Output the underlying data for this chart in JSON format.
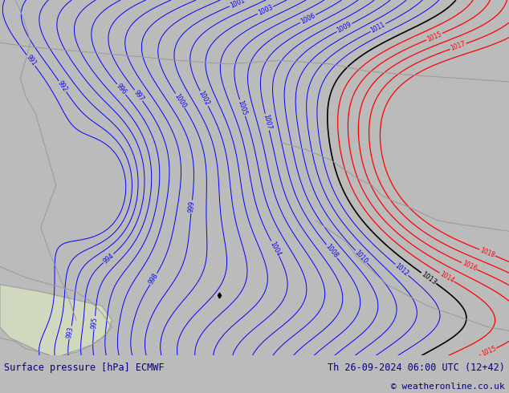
{
  "title_left": "Surface pressure [hPa] ECMWF",
  "title_right": "Th 26-09-2024 06:00 UTC (12+42)",
  "copyright": "© weatheronline.co.uk",
  "bg_color": "#aadd66",
  "footer_bg": "#bbbbbb",
  "footer_text_color": "#00008b",
  "fig_width": 6.34,
  "fig_height": 4.9,
  "dpi": 100
}
